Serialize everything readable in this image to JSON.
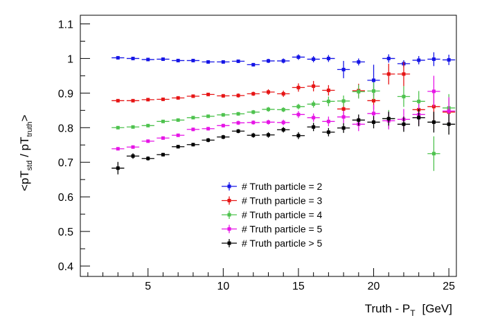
{
  "chart_data": {
    "type": "scatter",
    "xlabel": {
      "main": "Truth - P",
      "sub": "T",
      "unit": "[GeV]"
    },
    "ylabel": {
      "p1": "<pT",
      "s1": "std",
      "p2": " / pT",
      "s2": "truth",
      "p3": ">"
    },
    "xlim": [
      0.5,
      25.5
    ],
    "ylim": [
      0.37,
      1.125
    ],
    "xticks": [
      5,
      10,
      15,
      20,
      25
    ],
    "yticks": [
      0.4,
      0.5,
      0.6,
      0.7,
      0.8,
      0.9,
      1,
      1.1
    ],
    "legend_position": "bottom-center",
    "x": [
      3,
      4,
      5,
      6,
      7,
      8,
      9,
      10,
      11,
      12,
      13,
      14,
      15,
      16,
      17,
      18,
      19,
      20,
      21,
      22,
      23,
      24,
      25
    ],
    "series": [
      {
        "name": "# Truth particle = 2",
        "color": "#1515e6",
        "values": [
          1.002,
          1.0,
          0.997,
          0.998,
          0.994,
          0.994,
          0.99,
          0.99,
          0.992,
          0.982,
          0.993,
          0.993,
          1.004,
          0.998,
          1.0,
          0.968,
          0.99,
          0.937,
          1.0,
          0.985,
          0.995,
          0.998,
          0.996
        ],
        "errors": [
          0.003,
          0.003,
          0.003,
          0.003,
          0.003,
          0.003,
          0.003,
          0.003,
          0.004,
          0.005,
          0.006,
          0.007,
          0.008,
          0.009,
          0.01,
          0.025,
          0.01,
          0.045,
          0.012,
          0.01,
          0.012,
          0.02,
          0.015
        ]
      },
      {
        "name": "# Truth particle = 3",
        "color": "#e61515",
        "values": [
          0.878,
          0.878,
          0.881,
          0.882,
          0.886,
          0.891,
          0.896,
          0.892,
          0.893,
          0.898,
          0.903,
          0.898,
          0.916,
          0.92,
          0.908,
          0.854,
          0.907,
          0.878,
          0.955,
          0.955,
          0.852,
          0.861,
          0.845
        ],
        "errors": [
          0.003,
          0.003,
          0.003,
          0.003,
          0.003,
          0.004,
          0.004,
          0.005,
          0.006,
          0.006,
          0.008,
          0.009,
          0.012,
          0.015,
          0.015,
          0.02,
          0.02,
          0.025,
          0.03,
          0.035,
          0.03,
          0.045,
          0.04
        ]
      },
      {
        "name": "# Truth particle = 4",
        "color": "#4ec24e",
        "values": [
          0.8,
          0.802,
          0.806,
          0.818,
          0.822,
          0.829,
          0.833,
          0.837,
          0.84,
          0.845,
          0.853,
          0.852,
          0.861,
          0.868,
          0.876,
          0.877,
          0.904,
          0.906,
          0.826,
          0.89,
          0.876,
          0.725,
          0.857
        ],
        "errors": [
          0.003,
          0.003,
          0.003,
          0.004,
          0.004,
          0.004,
          0.004,
          0.005,
          0.005,
          0.006,
          0.007,
          0.007,
          0.008,
          0.01,
          0.014,
          0.016,
          0.02,
          0.025,
          0.025,
          0.03,
          0.03,
          0.05,
          0.04
        ]
      },
      {
        "name": "# Truth particle = 5",
        "color": "#e615e6",
        "values": [
          0.739,
          0.744,
          0.761,
          0.77,
          0.778,
          0.795,
          0.797,
          0.806,
          0.814,
          0.815,
          0.816,
          0.815,
          0.838,
          0.829,
          0.818,
          0.831,
          0.81,
          0.841,
          0.82,
          0.824,
          0.838,
          0.905,
          0.848
        ],
        "errors": [
          0.003,
          0.004,
          0.004,
          0.004,
          0.004,
          0.005,
          0.005,
          0.005,
          0.006,
          0.006,
          0.007,
          0.008,
          0.01,
          0.012,
          0.014,
          0.018,
          0.02,
          0.025,
          0.025,
          0.03,
          0.03,
          0.045,
          0.04
        ]
      },
      {
        "name": "# Truth particle > 5",
        "color": "#000000",
        "values": [
          0.683,
          0.718,
          0.711,
          0.722,
          0.745,
          0.751,
          0.764,
          0.773,
          0.79,
          0.778,
          0.779,
          0.794,
          0.777,
          0.802,
          0.787,
          0.799,
          0.822,
          0.816,
          0.826,
          0.81,
          0.829,
          0.816,
          0.81
        ],
        "errors": [
          0.018,
          0.008,
          0.006,
          0.005,
          0.005,
          0.005,
          0.006,
          0.006,
          0.006,
          0.007,
          0.008,
          0.008,
          0.01,
          0.012,
          0.012,
          0.014,
          0.016,
          0.018,
          0.02,
          0.022,
          0.025,
          0.03,
          0.03
        ]
      }
    ]
  }
}
